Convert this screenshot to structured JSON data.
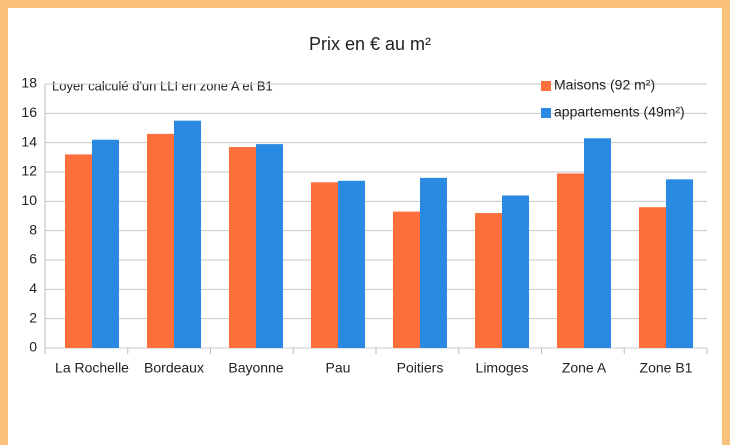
{
  "chart_data": {
    "type": "bar",
    "title": "Prix en € au m²",
    "annotation": "Loyer calculé d'un LLI  en zone A et B1",
    "categories": [
      "La Rochelle",
      "Bordeaux",
      "Bayonne",
      "Pau",
      "Poitiers",
      "Limoges",
      "Zone A",
      "Zone B1"
    ],
    "series": [
      {
        "name": "Maisons (92 m²)",
        "color": "#ff6f3c",
        "values": [
          13.2,
          14.6,
          13.7,
          11.3,
          9.3,
          9.2,
          11.9,
          9.6
        ]
      },
      {
        "name": "appartements (49m²)",
        "color": "#2a89e0",
        "values": [
          14.2,
          15.5,
          13.9,
          11.4,
          11.6,
          10.4,
          14.3,
          11.5
        ]
      }
    ],
    "ylim": [
      0,
      18
    ],
    "yticks": [
      0,
      2,
      4,
      6,
      8,
      10,
      12,
      14,
      16,
      18
    ],
    "grid": true,
    "legend": "top-right"
  }
}
